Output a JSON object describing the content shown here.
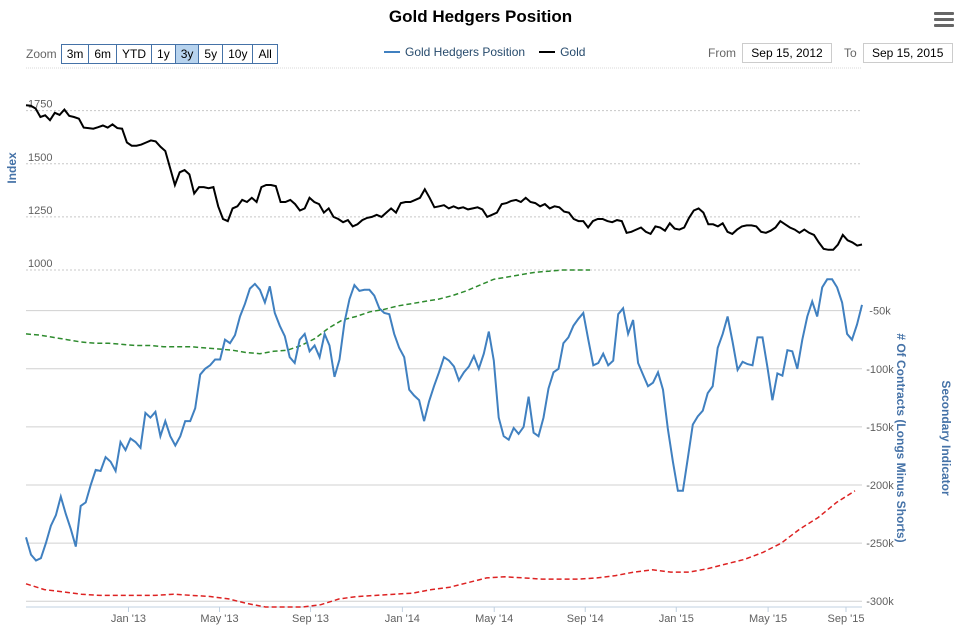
{
  "title": "Gold Hedgers Position",
  "menu_icon": "hamburger-menu-icon",
  "zoom": {
    "label": "Zoom",
    "buttons": [
      "3m",
      "6m",
      "YTD",
      "1y",
      "3y",
      "5y",
      "10y",
      "All"
    ],
    "active": "3y"
  },
  "legend": [
    {
      "name": "Gold Hedgers Position",
      "color": "#4080c0"
    },
    {
      "name": "Gold",
      "color": "#000000"
    }
  ],
  "range": {
    "from_label": "From",
    "from_value": "Sep 15, 2012",
    "to_label": "To",
    "to_value": "Sep 15, 2015"
  },
  "chart_data": {
    "type": "line",
    "x_ticks": [
      "Jan '13",
      "May '13",
      "Sep '13",
      "Jan '14",
      "May '14",
      "Sep '14",
      "Jan '15",
      "May '15",
      "Sep '15"
    ],
    "x_tick_pos": [
      0.125,
      0.236,
      0.347,
      0.459,
      0.571,
      0.682,
      0.793,
      0.905,
      1.0
    ],
    "top_panel": {
      "ylabel": "Index",
      "yticks": [
        1000,
        1250,
        1500,
        1750
      ],
      "ylim": [
        1000,
        1800
      ],
      "series": [
        {
          "name": "Gold",
          "color": "#000000",
          "values": [
            1775,
            1773,
            1760,
            1720,
            1728,
            1705,
            1740,
            1730,
            1755,
            1725,
            1720,
            1712,
            1670,
            1668,
            1665,
            1672,
            1680,
            1670,
            1685,
            1668,
            1665,
            1600,
            1585,
            1585,
            1590,
            1600,
            1610,
            1605,
            1580,
            1560,
            1480,
            1400,
            1460,
            1470,
            1450,
            1360,
            1390,
            1390,
            1385,
            1390,
            1300,
            1240,
            1230,
            1290,
            1300,
            1330,
            1320,
            1340,
            1320,
            1390,
            1400,
            1400,
            1395,
            1320,
            1320,
            1330,
            1310,
            1280,
            1290,
            1340,
            1320,
            1310,
            1270,
            1290,
            1250,
            1240,
            1225,
            1235,
            1205,
            1215,
            1235,
            1245,
            1250,
            1260,
            1250,
            1270,
            1290,
            1270,
            1315,
            1320,
            1320,
            1330,
            1340,
            1380,
            1340,
            1295,
            1300,
            1305,
            1290,
            1300,
            1290,
            1295,
            1285,
            1290,
            1295,
            1285,
            1250,
            1260,
            1270,
            1310,
            1315,
            1325,
            1330,
            1320,
            1340,
            1320,
            1315,
            1300,
            1310,
            1290,
            1300,
            1295,
            1275,
            1270,
            1240,
            1230,
            1230,
            1200,
            1230,
            1240,
            1240,
            1230,
            1225,
            1235,
            1230,
            1175,
            1180,
            1190,
            1200,
            1180,
            1170,
            1205,
            1200,
            1185,
            1220,
            1195,
            1190,
            1200,
            1245,
            1280,
            1290,
            1270,
            1215,
            1215,
            1205,
            1220,
            1180,
            1170,
            1190,
            1205,
            1210,
            1210,
            1205,
            1180,
            1175,
            1185,
            1200,
            1230,
            1215,
            1200,
            1190,
            1175,
            1190,
            1175,
            1165,
            1130,
            1100,
            1095,
            1095,
            1120,
            1165,
            1140,
            1130,
            1115,
            1120
          ]
        }
      ]
    },
    "bottom_panel": {
      "ylabel": "# Of Contracts (Longs Minus Shorts)",
      "y2label": "Secondary Indicator",
      "yticks": [
        -300000,
        -250000,
        -200000,
        -150000,
        -100000,
        -50000
      ],
      "ytick_labels": [
        "-300k",
        "-250k",
        "-200k",
        "-150k",
        "-100k",
        "-50k"
      ],
      "ylim": [
        -305000,
        -15000
      ],
      "series": [
        {
          "name": "Gold Hedgers Position",
          "color": "#4080c0",
          "values": [
            -245000,
            -260000,
            -265000,
            -263000,
            -250000,
            -235000,
            -226000,
            -210000,
            -225000,
            -238000,
            -253000,
            -218000,
            -215000,
            -200000,
            -187000,
            -188000,
            -176000,
            -180000,
            -188000,
            -163000,
            -170000,
            -160000,
            -163000,
            -168000,
            -138000,
            -142000,
            -137000,
            -158000,
            -145000,
            -158000,
            -166000,
            -158000,
            -145000,
            -145000,
            -134000,
            -105000,
            -100000,
            -97000,
            -92000,
            -92000,
            -75000,
            -78000,
            -71000,
            -55000,
            -44000,
            -31000,
            -27000,
            -32000,
            -43000,
            -29000,
            -52000,
            -63000,
            -72000,
            -90000,
            -95000,
            -75000,
            -70000,
            -85000,
            -80000,
            -90000,
            -70000,
            -80000,
            -107000,
            -92000,
            -60000,
            -40000,
            -28000,
            -33000,
            -32000,
            -32000,
            -37000,
            -48000,
            -52000,
            -53000,
            -70000,
            -82000,
            -90000,
            -118000,
            -123000,
            -127000,
            -145000,
            -128000,
            -115000,
            -103000,
            -90000,
            -93000,
            -98000,
            -110000,
            -103000,
            -98000,
            -89000,
            -100000,
            -87000,
            -68000,
            -93000,
            -142000,
            -158000,
            -161000,
            -151000,
            -156000,
            -150000,
            -124000,
            -155000,
            -158000,
            -142000,
            -117000,
            -103000,
            -100000,
            -78000,
            -73000,
            -63000,
            -57000,
            -52000,
            -75000,
            -97000,
            -95000,
            -87000,
            -97000,
            -93000,
            -53000,
            -48000,
            -70000,
            -58000,
            -95000,
            -105000,
            -115000,
            -112000,
            -103000,
            -118000,
            -152000,
            -180000,
            -205000,
            -205000,
            -177000,
            -148000,
            -141000,
            -136000,
            -121000,
            -115000,
            -82000,
            -70000,
            -55000,
            -77000,
            -101000,
            -94000,
            -96000,
            -97000,
            -73000,
            -73000,
            -99000,
            -127000,
            -104000,
            -106000,
            -84000,
            -85000,
            -100000,
            -75000,
            -55000,
            -42000,
            -55000,
            -30000,
            -23000,
            -23000,
            -30000,
            -43000,
            -70000,
            -75000,
            -62000,
            -45000
          ]
        },
        {
          "name": "green-dashed-indicator",
          "color": "#2e8b2e",
          "dashed": true,
          "values": [
            -70000,
            -71000,
            -73000,
            -75000,
            -77000,
            -78000,
            -78000,
            -79000,
            -80000,
            -80000,
            -81000,
            -81000,
            -81000,
            -82000,
            -83000,
            -84000,
            -86000,
            -87000,
            -85000,
            -84000,
            -80000,
            -74000,
            -65000,
            -58000,
            -55000,
            -51000,
            -49000,
            -46000,
            -44000,
            -42000,
            -40000,
            -37000,
            -33000,
            -28000,
            -23000,
            -21000,
            -19000,
            -17000,
            -16000,
            -15000,
            -14000,
            -13000
          ]
        },
        {
          "name": "red-dashed-indicator",
          "color": "#dd2222",
          "dashed": true,
          "values": [
            -285000,
            -290000,
            -292000,
            -294000,
            -295000,
            -295000,
            -295000,
            -295000,
            -294000,
            -295000,
            -296000,
            -298000,
            -302000,
            -306000,
            -310000,
            -308000,
            -303000,
            -298000,
            -296000,
            -295000,
            -294000,
            -293000,
            -290000,
            -288000,
            -284000,
            -280000,
            -279000,
            -280000,
            -281000,
            -281000,
            -281000,
            -280000,
            -278000,
            -275000,
            -273000,
            -275000,
            -275000,
            -272000,
            -268000,
            -264000,
            -258000,
            -250000,
            -238000,
            -228000,
            -215000,
            -205000
          ]
        }
      ]
    }
  }
}
